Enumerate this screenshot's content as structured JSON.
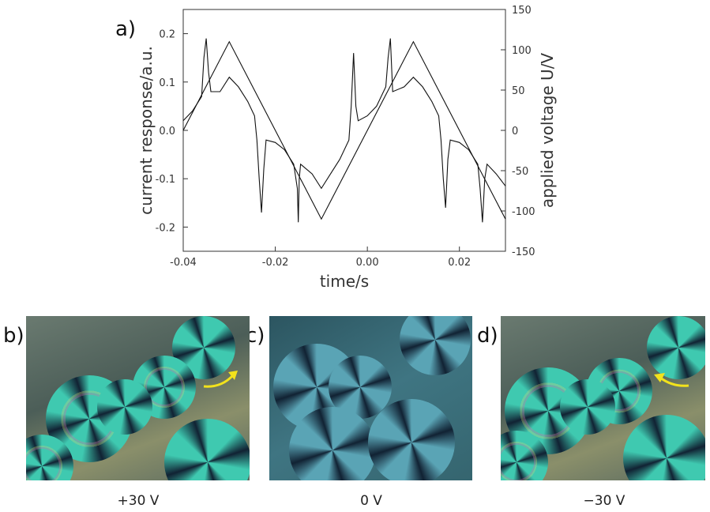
{
  "labels": {
    "a": "a)",
    "b": "b)",
    "c": "c)",
    "d": "d)"
  },
  "captions": {
    "b": "+30 V",
    "c": "0 V",
    "d": "−30 V"
  },
  "chart_data": {
    "type": "line",
    "xlabel": "time/s",
    "ylabel": "current response/a.u.",
    "y2label": "applied voltage U/V",
    "xlim": [
      -0.04,
      0.03
    ],
    "ylim": [
      -0.25,
      0.25
    ],
    "y2lim": [
      -150,
      150
    ],
    "xticks": [
      "-0.04",
      "-0.02",
      "0.00",
      "0.02"
    ],
    "yticks": [
      "0.2",
      "0.1",
      "0.0",
      "-0.1",
      "-0.2"
    ],
    "y2ticks": [
      "150",
      "100",
      "50",
      "0",
      "-50",
      "-100",
      "-150"
    ],
    "grid": false,
    "series": [
      {
        "axis": "right",
        "x": [
          -0.04,
          -0.03,
          -0.01,
          0.01,
          0.03
        ],
        "y": [
          0,
          110,
          -110,
          110,
          -110
        ]
      },
      {
        "axis": "left",
        "x": [
          -0.04,
          -0.038,
          -0.036,
          -0.0355,
          -0.035,
          -0.0345,
          -0.034,
          -0.032,
          -0.03,
          -0.028,
          -0.026,
          -0.0245,
          -0.024,
          -0.0235,
          -0.023,
          -0.0225,
          -0.022,
          -0.02,
          -0.018,
          -0.016,
          -0.0152,
          -0.015,
          -0.0148,
          -0.0145,
          -0.012,
          -0.01,
          -0.008,
          -0.006,
          -0.004,
          -0.0035,
          -0.003,
          -0.0025,
          -0.002,
          0.0,
          0.002,
          0.004,
          0.0045,
          0.005,
          0.0055,
          0.008,
          0.01,
          0.012,
          0.014,
          0.0155,
          0.016,
          0.0165,
          0.017,
          0.0175,
          0.018,
          0.02,
          0.022,
          0.024,
          0.0245,
          0.025,
          0.0255,
          0.026,
          0.028,
          0.03
        ],
        "y": [
          0.02,
          0.04,
          0.07,
          0.15,
          0.19,
          0.12,
          0.08,
          0.08,
          0.11,
          0.09,
          0.06,
          0.03,
          -0.02,
          -0.1,
          -0.17,
          -0.08,
          -0.02,
          -0.025,
          -0.04,
          -0.07,
          -0.12,
          -0.19,
          -0.1,
          -0.07,
          -0.09,
          -0.12,
          -0.09,
          -0.06,
          -0.02,
          0.05,
          0.16,
          0.05,
          0.02,
          0.03,
          0.05,
          0.09,
          0.15,
          0.19,
          0.08,
          0.09,
          0.11,
          0.09,
          0.06,
          0.03,
          -0.02,
          -0.1,
          -0.16,
          -0.06,
          -0.02,
          -0.025,
          -0.04,
          -0.07,
          -0.12,
          -0.19,
          -0.1,
          -0.07,
          -0.09,
          -0.115
        ]
      }
    ]
  },
  "colors": {
    "line": "#111111",
    "arrow": "#f2e21c",
    "crystal": "#3fc9b0"
  }
}
